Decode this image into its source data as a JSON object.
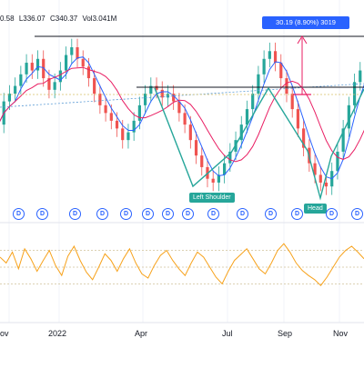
{
  "header": {
    "ohlc_values": [
      "0.58",
      "L336.07",
      "C340.37",
      "Vol3.041M"
    ]
  },
  "measurement": {
    "label": "30.19 (8.90%) 3019"
  },
  "annotations": {
    "left_shoulder": "Left Shoulder",
    "head": "Head"
  },
  "dividend_marker_label": "D",
  "colors": {
    "up_candle": "#26a69a",
    "down_candle": "#ef5350",
    "pattern_line": "#26a69a",
    "ma_fast": "#2962ff",
    "ma_slow": "#e91e63",
    "oscillator": "#f7a21b",
    "measure": "#2962ff",
    "measure_marker": "#e91e63"
  },
  "chart_data": {
    "type": "line",
    "x_tick_labels": [
      "ov",
      "2022",
      "Apr",
      "Jul",
      "Sep",
      "Nov"
    ],
    "price_series": [
      328,
      334,
      336,
      338,
      341,
      344,
      342,
      345,
      340,
      337,
      339,
      342,
      346,
      348,
      345,
      343,
      340,
      336,
      333,
      331,
      329,
      327,
      324,
      326,
      329,
      333,
      336,
      338,
      337,
      335,
      336,
      334,
      331,
      328,
      324,
      320,
      317,
      314,
      313,
      315,
      318,
      321,
      324,
      328,
      332,
      336,
      341,
      345,
      347,
      344,
      340,
      336,
      332,
      327,
      322,
      318,
      315,
      313,
      312,
      316,
      321,
      327,
      333,
      339,
      342,
      344
    ],
    "oscillator_series": [
      62,
      55,
      68,
      48,
      72,
      60,
      45,
      58,
      70,
      52,
      40,
      63,
      75,
      58,
      44,
      35,
      50,
      66,
      58,
      45,
      60,
      72,
      55,
      42,
      37,
      52,
      64,
      70,
      58,
      48,
      40,
      55,
      68,
      62,
      50,
      38,
      30,
      45,
      58,
      65,
      72,
      60,
      48,
      42,
      55,
      70,
      78,
      68,
      55,
      46,
      40,
      35,
      28,
      38,
      50,
      62,
      70,
      75,
      68,
      60
    ],
    "ylim_oscillator": [
      0,
      100
    ]
  }
}
